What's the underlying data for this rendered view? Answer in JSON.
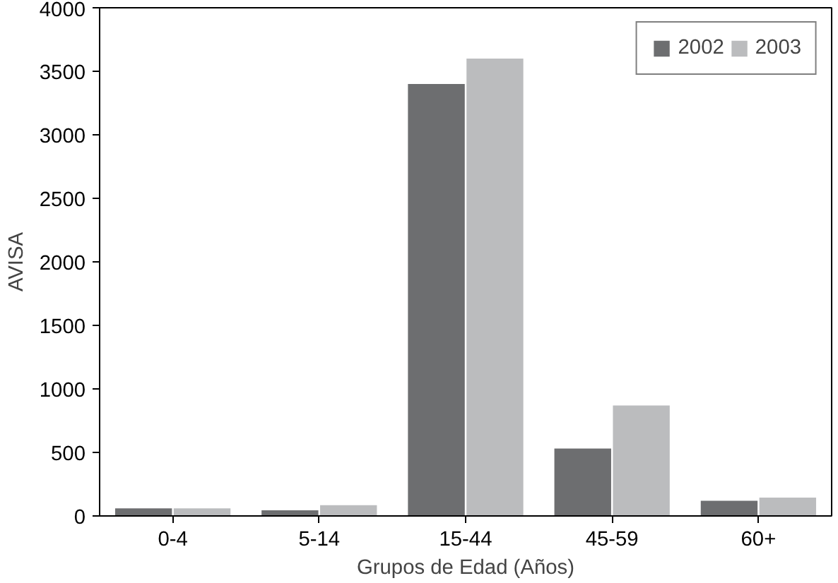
{
  "chart_data": {
    "type": "bar",
    "xlabel": "Grupos de Edad (Años)",
    "ylabel": "AVISA",
    "categories": [
      "0-4",
      "5-14",
      "15-44",
      "45-59",
      "60+"
    ],
    "series": [
      {
        "name": "2002",
        "color": "#6d6e70",
        "values": [
          60,
          45,
          3400,
          530,
          120
        ]
      },
      {
        "name": "2003",
        "color": "#bbbcbe",
        "values": [
          60,
          85,
          3600,
          870,
          145
        ]
      }
    ],
    "ylim": [
      0,
      4000
    ],
    "yticks": [
      0,
      500,
      1000,
      1500,
      2000,
      2500,
      3000,
      3500,
      4000
    ],
    "grid": false,
    "legend": "top right"
  }
}
